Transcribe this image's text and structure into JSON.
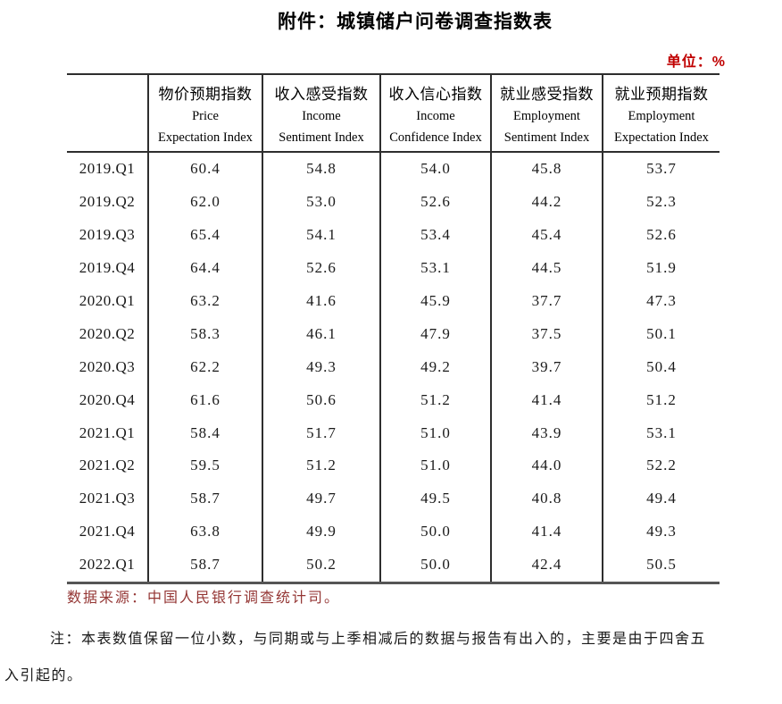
{
  "title": "附件：城镇储户问卷调查指数表",
  "unit_label": "单位：%",
  "colors": {
    "unit_label": "#c00000",
    "source_note": "#943634",
    "body_text": "#1a1a1a",
    "table_border": "#2e2e2e"
  },
  "table": {
    "columns": [
      {
        "zh": "物价预期指数",
        "en1": "Price",
        "en2": "Expectation Index"
      },
      {
        "zh": "收入感受指数",
        "en1": "Income",
        "en2": "Sentiment Index"
      },
      {
        "zh": "收入信心指数",
        "en1": "Income",
        "en2": "Confidence Index"
      },
      {
        "zh": "就业感受指数",
        "en1": "Employment",
        "en2": "Sentiment Index"
      },
      {
        "zh": "就业预期指数",
        "en1": "Employment",
        "en2": "Expectation Index"
      }
    ],
    "rows": [
      {
        "period": "2019.Q1",
        "values": [
          "60.4",
          "54.8",
          "54.0",
          "45.8",
          "53.7"
        ]
      },
      {
        "period": "2019.Q2",
        "values": [
          "62.0",
          "53.0",
          "52.6",
          "44.2",
          "52.3"
        ]
      },
      {
        "period": "2019.Q3",
        "values": [
          "65.4",
          "54.1",
          "53.4",
          "45.4",
          "52.6"
        ]
      },
      {
        "period": "2019.Q4",
        "values": [
          "64.4",
          "52.6",
          "53.1",
          "44.5",
          "51.9"
        ]
      },
      {
        "period": "2020.Q1",
        "values": [
          "63.2",
          "41.6",
          "45.9",
          "37.7",
          "47.3"
        ]
      },
      {
        "period": "2020.Q2",
        "values": [
          "58.3",
          "46.1",
          "47.9",
          "37.5",
          "50.1"
        ]
      },
      {
        "period": "2020.Q3",
        "values": [
          "62.2",
          "49.3",
          "49.2",
          "39.7",
          "50.4"
        ]
      },
      {
        "period": "2020.Q4",
        "values": [
          "61.6",
          "50.6",
          "51.2",
          "41.4",
          "51.2"
        ]
      },
      {
        "period": "2021.Q1",
        "values": [
          "58.4",
          "51.7",
          "51.0",
          "43.9",
          "53.1"
        ]
      },
      {
        "period": "2021.Q2",
        "values": [
          "59.5",
          "51.2",
          "51.0",
          "44.0",
          "52.2"
        ]
      },
      {
        "period": "2021.Q3",
        "values": [
          "58.7",
          "49.7",
          "49.5",
          "40.8",
          "49.4"
        ]
      },
      {
        "period": "2021.Q4",
        "values": [
          "63.8",
          "49.9",
          "50.0",
          "41.4",
          "49.3"
        ]
      },
      {
        "period": "2022.Q1",
        "values": [
          "58.7",
          "50.2",
          "50.0",
          "42.4",
          "50.5"
        ]
      }
    ]
  },
  "footnotes": {
    "source": "数据来源：中国人民银行调查统计司。",
    "note_line1": "注：本表数值保留一位小数，与同期或与上季相减后的数据与报告有出入的，主要是由于四舍五",
    "note_line2": "入引起的。"
  }
}
